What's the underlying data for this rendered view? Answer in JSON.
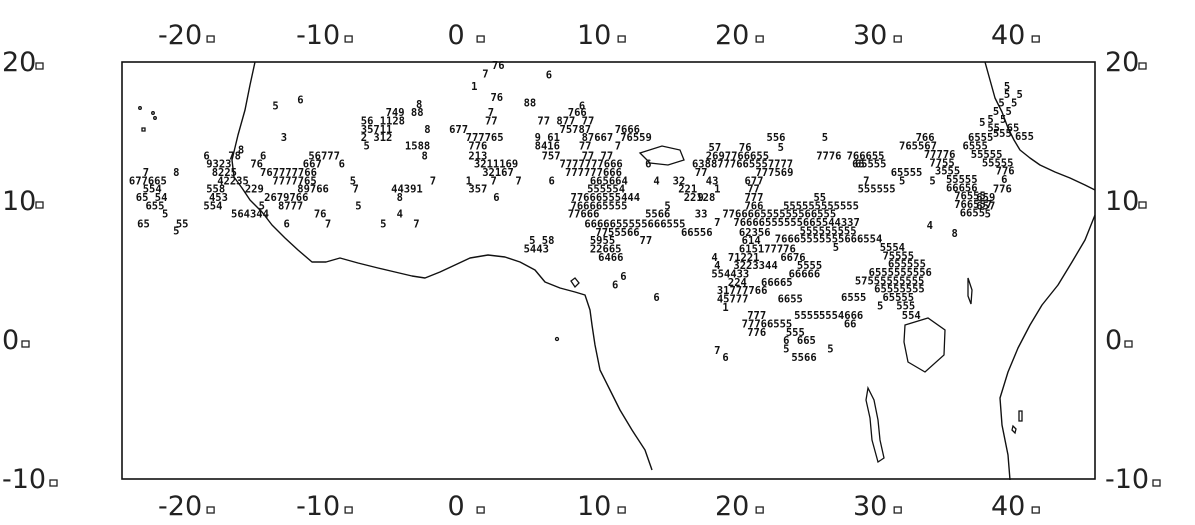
{
  "map": {
    "lon_range": [
      -24.5,
      46
    ],
    "lat_range": [
      -10,
      20
    ],
    "x_ticks": [
      {
        "lon": -20,
        "label": "-20"
      },
      {
        "lon": -10,
        "label": "-10"
      },
      {
        "lon": 0,
        "label": "0"
      },
      {
        "lon": 10,
        "label": "10"
      },
      {
        "lon": 20,
        "label": "20"
      },
      {
        "lon": 30,
        "label": "30"
      },
      {
        "lon": 40,
        "label": "40"
      }
    ],
    "y_ticks": [
      {
        "lat": 20,
        "label": "20"
      },
      {
        "lat": 10,
        "label": "10"
      },
      {
        "lat": 0,
        "label": "0"
      },
      {
        "lat": -10,
        "label": "-10"
      }
    ],
    "station_codes": [
      {
        "lon": 2.3,
        "lat": 19.5,
        "text": "76"
      },
      {
        "lon": 1.6,
        "lat": 18.9,
        "text": "7"
      },
      {
        "lon": 6.2,
        "lat": 18.8,
        "text": "6"
      },
      {
        "lon": 0.8,
        "lat": 18.0,
        "text": "1"
      },
      {
        "lon": 2.2,
        "lat": 17.2,
        "text": "76"
      },
      {
        "lon": 4.6,
        "lat": 16.8,
        "text": "88"
      },
      {
        "lon": -11.8,
        "lat": 17.0,
        "text": "6"
      },
      {
        "lon": -13.6,
        "lat": 16.6,
        "text": "5"
      },
      {
        "lon": -3.2,
        "lat": 16.7,
        "text": "8"
      },
      {
        "lon": 8.6,
        "lat": 16.6,
        "text": "6"
      },
      {
        "lon": -5.4,
        "lat": 16.1,
        "text": "749 88"
      },
      {
        "lon": 2.0,
        "lat": 16.1,
        "text": "7"
      },
      {
        "lon": 7.8,
        "lat": 16.1,
        "text": "766"
      },
      {
        "lon": -7.2,
        "lat": 15.5,
        "text": "56 1128"
      },
      {
        "lon": 1.8,
        "lat": 15.5,
        "text": "77"
      },
      {
        "lon": 5.6,
        "lat": 15.5,
        "text": "77 877 77"
      },
      {
        "lon": -7.2,
        "lat": 14.9,
        "text": "35711"
      },
      {
        "lon": -2.6,
        "lat": 14.9,
        "text": "8"
      },
      {
        "lon": -0.8,
        "lat": 14.9,
        "text": "677"
      },
      {
        "lon": 7.2,
        "lat": 14.9,
        "text": "75787"
      },
      {
        "lon": 11.2,
        "lat": 14.9,
        "text": "7666"
      },
      {
        "lon": -7.2,
        "lat": 14.3,
        "text": "2 312"
      },
      {
        "lon": -13.0,
        "lat": 14.3,
        "text": "3"
      },
      {
        "lon": 0.4,
        "lat": 14.3,
        "text": "777765"
      },
      {
        "lon": 5.4,
        "lat": 14.3,
        "text": "9 61"
      },
      {
        "lon": 8.8,
        "lat": 14.3,
        "text": "87667"
      },
      {
        "lon": 11.6,
        "lat": 14.3,
        "text": "76559"
      },
      {
        "lon": -7.0,
        "lat": 13.7,
        "text": "5"
      },
      {
        "lon": -4.0,
        "lat": 13.7,
        "text": "1588"
      },
      {
        "lon": 0.6,
        "lat": 13.7,
        "text": "776"
      },
      {
        "lon": 5.4,
        "lat": 13.7,
        "text": "8416"
      },
      {
        "lon": 8.6,
        "lat": 13.7,
        "text": "77"
      },
      {
        "lon": 11.2,
        "lat": 13.7,
        "text": "7"
      },
      {
        "lon": -16.1,
        "lat": 13.4,
        "text": "8"
      },
      {
        "lon": -18.6,
        "lat": 13.0,
        "text": "6"
      },
      {
        "lon": -16.8,
        "lat": 13.0,
        "text": "78"
      },
      {
        "lon": -14.5,
        "lat": 13.0,
        "text": "6"
      },
      {
        "lon": -11.0,
        "lat": 13.0,
        "text": "56777"
      },
      {
        "lon": -2.8,
        "lat": 13.0,
        "text": "8"
      },
      {
        "lon": 0.6,
        "lat": 13.0,
        "text": "213"
      },
      {
        "lon": 5.9,
        "lat": 13.0,
        "text": "757"
      },
      {
        "lon": 8.8,
        "lat": 13.0,
        "text": "77 77"
      },
      {
        "lon": -18.4,
        "lat": 12.4,
        "text": "9323"
      },
      {
        "lon": -15.2,
        "lat": 12.4,
        "text": "76"
      },
      {
        "lon": -11.4,
        "lat": 12.4,
        "text": "667"
      },
      {
        "lon": -8.8,
        "lat": 12.4,
        "text": "6"
      },
      {
        "lon": 1.0,
        "lat": 12.4,
        "text": "3211169"
      },
      {
        "lon": 7.2,
        "lat": 12.4,
        "text": "7777777666"
      },
      {
        "lon": 13.4,
        "lat": 12.4,
        "text": "6"
      },
      {
        "lon": -23.0,
        "lat": 11.8,
        "text": "7"
      },
      {
        "lon": -20.8,
        "lat": 11.8,
        "text": "8"
      },
      {
        "lon": -18.0,
        "lat": 11.8,
        "text": "8225"
      },
      {
        "lon": -14.5,
        "lat": 11.8,
        "text": "767777766"
      },
      {
        "lon": 1.6,
        "lat": 11.8,
        "text": "32167"
      },
      {
        "lon": 7.6,
        "lat": 11.8,
        "text": "777777666"
      },
      {
        "lon": -24.0,
        "lat": 11.2,
        "text": "677665"
      },
      {
        "lon": -17.6,
        "lat": 11.2,
        "text": "42235"
      },
      {
        "lon": -13.6,
        "lat": 11.2,
        "text": "7777765"
      },
      {
        "lon": -8.0,
        "lat": 11.2,
        "text": "5"
      },
      {
        "lon": -2.2,
        "lat": 11.2,
        "text": "7"
      },
      {
        "lon": 0.4,
        "lat": 11.2,
        "text": "1"
      },
      {
        "lon": 2.2,
        "lat": 11.2,
        "text": "7"
      },
      {
        "lon": 4.0,
        "lat": 11.2,
        "text": "7"
      },
      {
        "lon": 6.4,
        "lat": 11.2,
        "text": "6"
      },
      {
        "lon": 9.4,
        "lat": 11.2,
        "text": "665664"
      },
      {
        "lon": 14.0,
        "lat": 11.2,
        "text": "4"
      },
      {
        "lon": 15.4,
        "lat": 11.2,
        "text": "32"
      },
      {
        "lon": -23.0,
        "lat": 10.6,
        "text": "554"
      },
      {
        "lon": -18.4,
        "lat": 10.6,
        "text": "558"
      },
      {
        "lon": -15.6,
        "lat": 10.6,
        "text": "229"
      },
      {
        "lon": -11.8,
        "lat": 10.6,
        "text": "89766"
      },
      {
        "lon": -7.8,
        "lat": 10.6,
        "text": "7"
      },
      {
        "lon": -5.0,
        "lat": 10.6,
        "text": "44391"
      },
      {
        "lon": 0.6,
        "lat": 10.6,
        "text": "357"
      },
      {
        "lon": 9.2,
        "lat": 10.6,
        "text": "555554"
      },
      {
        "lon": 15.8,
        "lat": 10.6,
        "text": "221"
      },
      {
        "lon": -23.5,
        "lat": 10.0,
        "text": "65 54"
      },
      {
        "lon": -18.2,
        "lat": 10.0,
        "text": "453"
      },
      {
        "lon": -14.2,
        "lat": 10.0,
        "text": "2679766"
      },
      {
        "lon": -4.6,
        "lat": 10.0,
        "text": "8"
      },
      {
        "lon": 2.4,
        "lat": 10.0,
        "text": "6"
      },
      {
        "lon": 8.0,
        "lat": 10.0,
        "text": "77666555444"
      },
      {
        "lon": 16.2,
        "lat": 10.0,
        "text": "22128"
      },
      {
        "lon": -22.8,
        "lat": 9.4,
        "text": "655"
      },
      {
        "lon": -18.6,
        "lat": 9.4,
        "text": "554"
      },
      {
        "lon": -14.6,
        "lat": 9.4,
        "text": "5"
      },
      {
        "lon": -13.2,
        "lat": 9.4,
        "text": "8777"
      },
      {
        "lon": -7.6,
        "lat": 9.4,
        "text": "5"
      },
      {
        "lon": 8.0,
        "lat": 9.4,
        "text": "766665555"
      },
      {
        "lon": 14.8,
        "lat": 9.4,
        "text": "5"
      },
      {
        "lon": -21.6,
        "lat": 8.8,
        "text": "5"
      },
      {
        "lon": -16.6,
        "lat": 8.8,
        "text": "564344"
      },
      {
        "lon": -10.6,
        "lat": 8.8,
        "text": "76"
      },
      {
        "lon": -4.6,
        "lat": 8.8,
        "text": "4"
      },
      {
        "lon": 7.8,
        "lat": 8.8,
        "text": "77666"
      },
      {
        "lon": 13.4,
        "lat": 8.8,
        "text": "5566"
      },
      {
        "lon": 17.0,
        "lat": 8.8,
        "text": "33"
      },
      {
        "lon": -23.4,
        "lat": 8.1,
        "text": "65"
      },
      {
        "lon": -20.6,
        "lat": 8.1,
        "text": "55"
      },
      {
        "lon": -12.8,
        "lat": 8.1,
        "text": "6"
      },
      {
        "lon": -9.8,
        "lat": 8.1,
        "text": "7"
      },
      {
        "lon": -5.8,
        "lat": 8.1,
        "text": "5"
      },
      {
        "lon": -3.4,
        "lat": 8.1,
        "text": "7"
      },
      {
        "lon": 9.0,
        "lat": 8.1,
        "text": "6666655555666555"
      },
      {
        "lon": -20.8,
        "lat": 7.6,
        "text": "5"
      },
      {
        "lon": 9.8,
        "lat": 7.5,
        "text": "7755566"
      },
      {
        "lon": 16.0,
        "lat": 7.5,
        "text": "66556"
      },
      {
        "lon": 20.2,
        "lat": 7.5,
        "text": "62356"
      },
      {
        "lon": 5.0,
        "lat": 6.9,
        "text": "5 58"
      },
      {
        "lon": 9.4,
        "lat": 6.9,
        "text": "5955"
      },
      {
        "lon": 13.0,
        "lat": 6.9,
        "text": "77"
      },
      {
        "lon": 20.4,
        "lat": 6.9,
        "text": "614"
      },
      {
        "lon": 4.6,
        "lat": 6.3,
        "text": "5443"
      },
      {
        "lon": 9.4,
        "lat": 6.3,
        "text": "22665"
      },
      {
        "lon": 20.2,
        "lat": 6.3,
        "text": "615177776"
      },
      {
        "lon": 10.0,
        "lat": 5.7,
        "text": "6466"
      },
      {
        "lon": 18.2,
        "lat": 5.7,
        "text": "4"
      },
      {
        "lon": 19.4,
        "lat": 5.7,
        "text": "71221"
      },
      {
        "lon": 23.2,
        "lat": 5.7,
        "text": "6676"
      },
      {
        "lon": 18.4,
        "lat": 5.1,
        "text": "4"
      },
      {
        "lon": 19.8,
        "lat": 5.1,
        "text": "3223344"
      },
      {
        "lon": 24.4,
        "lat": 5.1,
        "text": "5555"
      },
      {
        "lon": 18.2,
        "lat": 4.5,
        "text": "554433"
      },
      {
        "lon": 23.8,
        "lat": 4.5,
        "text": "66666"
      },
      {
        "lon": 11.6,
        "lat": 4.3,
        "text": "6"
      },
      {
        "lon": 11.0,
        "lat": 3.7,
        "text": "6"
      },
      {
        "lon": 19.4,
        "lat": 3.9,
        "text": "224"
      },
      {
        "lon": 21.8,
        "lat": 3.9,
        "text": "66665"
      },
      {
        "lon": 18.6,
        "lat": 3.3,
        "text": "31777766"
      },
      {
        "lon": 18.6,
        "lat": 2.7,
        "text": "45777"
      },
      {
        "lon": 23.0,
        "lat": 2.7,
        "text": "6655"
      },
      {
        "lon": 14.0,
        "lat": 2.8,
        "text": "6"
      },
      {
        "lon": 19.0,
        "lat": 2.1,
        "text": "1"
      },
      {
        "lon": 20.8,
        "lat": 1.5,
        "text": "777"
      },
      {
        "lon": 24.2,
        "lat": 1.5,
        "text": "5555"
      },
      {
        "lon": 20.4,
        "lat": 0.9,
        "text": "77766555"
      },
      {
        "lon": 20.8,
        "lat": 0.3,
        "text": "776"
      },
      {
        "lon": 23.6,
        "lat": 0.3,
        "text": "555"
      },
      {
        "lon": 23.4,
        "lat": -0.3,
        "text": "6"
      },
      {
        "lon": 24.4,
        "lat": -0.3,
        "text": "665"
      },
      {
        "lon": 23.4,
        "lat": -0.9,
        "text": "5"
      },
      {
        "lon": 26.6,
        "lat": -0.9,
        "text": "5"
      },
      {
        "lon": 24.0,
        "lat": -1.5,
        "text": "5566"
      },
      {
        "lon": 18.4,
        "lat": -1.0,
        "text": "7"
      },
      {
        "lon": 19.0,
        "lat": -1.5,
        "text": "6"
      },
      {
        "lon": 18.0,
        "lat": 13.6,
        "text": "57"
      },
      {
        "lon": 20.2,
        "lat": 13.6,
        "text": "76"
      },
      {
        "lon": 23.0,
        "lat": 13.6,
        "text": "5"
      },
      {
        "lon": 22.2,
        "lat": 14.3,
        "text": "556"
      },
      {
        "lon": 26.2,
        "lat": 14.3,
        "text": "5"
      },
      {
        "lon": 17.8,
        "lat": 13.0,
        "text": "2697766655"
      },
      {
        "lon": 25.8,
        "lat": 13.0,
        "text": "7776"
      },
      {
        "lon": 16.8,
        "lat": 12.4,
        "text": "6388777665557777"
      },
      {
        "lon": 28.4,
        "lat": 12.4,
        "text": "65"
      },
      {
        "lon": 17.0,
        "lat": 11.8,
        "text": "77"
      },
      {
        "lon": 21.4,
        "lat": 11.8,
        "text": "777569"
      },
      {
        "lon": 17.8,
        "lat": 11.2,
        "text": "43"
      },
      {
        "lon": 20.6,
        "lat": 11.2,
        "text": "677"
      },
      {
        "lon": 18.4,
        "lat": 10.6,
        "text": "1"
      },
      {
        "lon": 20.8,
        "lat": 10.6,
        "text": "77"
      },
      {
        "lon": 17.2,
        "lat": 10.0,
        "text": "9"
      },
      {
        "lon": 20.6,
        "lat": 10.0,
        "text": "777"
      },
      {
        "lon": 25.6,
        "lat": 10.0,
        "text": "55"
      },
      {
        "lon": 20.6,
        "lat": 9.4,
        "text": "766"
      },
      {
        "lon": 23.4,
        "lat": 9.4,
        "text": "555555555555"
      },
      {
        "lon": 19.0,
        "lat": 8.8,
        "text": "776666555555566555"
      },
      {
        "lon": 18.4,
        "lat": 8.2,
        "text": "7"
      },
      {
        "lon": 19.8,
        "lat": 8.2,
        "text": "76666555555665544337"
      },
      {
        "lon": 24.6,
        "lat": 7.6,
        "text": "555555555"
      },
      {
        "lon": 22.8,
        "lat": 7.0,
        "text": "76665555555666554"
      },
      {
        "lon": 27.0,
        "lat": 6.4,
        "text": "5"
      },
      {
        "lon": 30.4,
        "lat": 6.4,
        "text": "5554"
      },
      {
        "lon": 30.6,
        "lat": 5.8,
        "text": "75555"
      },
      {
        "lon": 31.0,
        "lat": 5.2,
        "text": "655555"
      },
      {
        "lon": 29.6,
        "lat": 4.6,
        "text": "6555555556"
      },
      {
        "lon": 28.6,
        "lat": 4.0,
        "text": "57555555555"
      },
      {
        "lon": 30.0,
        "lat": 3.4,
        "text": "65555555"
      },
      {
        "lon": 27.6,
        "lat": 2.8,
        "text": "6555"
      },
      {
        "lon": 30.6,
        "lat": 2.8,
        "text": "65555"
      },
      {
        "lon": 30.2,
        "lat": 2.2,
        "text": "5"
      },
      {
        "lon": 31.6,
        "lat": 2.2,
        "text": "555"
      },
      {
        "lon": 26.0,
        "lat": 1.5,
        "text": "5554666"
      },
      {
        "lon": 27.8,
        "lat": 0.9,
        "text": "66"
      },
      {
        "lon": 32.0,
        "lat": 1.5,
        "text": "554"
      },
      {
        "lon": 28.0,
        "lat": 13.0,
        "text": "766655"
      },
      {
        "lon": 28.6,
        "lat": 12.4,
        "text": "65555"
      },
      {
        "lon": 31.2,
        "lat": 11.8,
        "text": "65555"
      },
      {
        "lon": 29.2,
        "lat": 11.2,
        "text": "7"
      },
      {
        "lon": 31.8,
        "lat": 11.2,
        "text": "5"
      },
      {
        "lon": 34.0,
        "lat": 11.2,
        "text": "5"
      },
      {
        "lon": 28.8,
        "lat": 10.6,
        "text": "555555"
      },
      {
        "lon": 33.0,
        "lat": 14.3,
        "text": "766"
      },
      {
        "lon": 31.8,
        "lat": 13.7,
        "text": "765567"
      },
      {
        "lon": 33.6,
        "lat": 13.1,
        "text": "77776"
      },
      {
        "lon": 34.0,
        "lat": 12.5,
        "text": "7755"
      },
      {
        "lon": 34.4,
        "lat": 11.9,
        "text": "3555"
      },
      {
        "lon": 35.2,
        "lat": 11.3,
        "text": "55555"
      },
      {
        "lon": 35.2,
        "lat": 10.7,
        "text": "66656"
      },
      {
        "lon": 35.8,
        "lat": 10.1,
        "text": "76555"
      },
      {
        "lon": 35.8,
        "lat": 9.5,
        "text": "766557"
      },
      {
        "lon": 36.2,
        "lat": 8.9,
        "text": "6655"
      },
      {
        "lon": 36.8,
        "lat": 14.3,
        "text": "6555"
      },
      {
        "lon": 36.4,
        "lat": 13.7,
        "text": "6555"
      },
      {
        "lon": 37.0,
        "lat": 13.1,
        "text": "55555"
      },
      {
        "lon": 37.8,
        "lat": 12.5,
        "text": "55555"
      },
      {
        "lon": 38.8,
        "lat": 11.9,
        "text": "776"
      },
      {
        "lon": 39.2,
        "lat": 11.3,
        "text": "6"
      },
      {
        "lon": 38.6,
        "lat": 10.6,
        "text": "776"
      },
      {
        "lon": 37.4,
        "lat": 10.0,
        "text": "659"
      },
      {
        "lon": 37.4,
        "lat": 9.4,
        "text": "657"
      },
      {
        "lon": 38.0,
        "lat": 8.8,
        "text": "5"
      },
      {
        "lon": 37.6,
        "lat": 15.4,
        "text": "5"
      },
      {
        "lon": 38.2,
        "lat": 15.0,
        "text": "55"
      },
      {
        "lon": 38.6,
        "lat": 14.6,
        "text": "555"
      },
      {
        "lon": 39.4,
        "lat": 18.0,
        "text": "5"
      },
      {
        "lon": 39.4,
        "lat": 17.4,
        "text": "5 5"
      },
      {
        "lon": 39.0,
        "lat": 16.8,
        "text": "5 5"
      },
      {
        "lon": 38.6,
        "lat": 16.2,
        "text": "5 5"
      },
      {
        "lon": 38.2,
        "lat": 15.6,
        "text": "5 5"
      },
      {
        "lon": 39.6,
        "lat": 15.0,
        "text": "65"
      },
      {
        "lon": 40.2,
        "lat": 14.4,
        "text": "655"
      },
      {
        "lon": 35.6,
        "lat": 7.4,
        "text": "8"
      },
      {
        "lon": 33.8,
        "lat": 8.0,
        "text": "4"
      }
    ]
  }
}
